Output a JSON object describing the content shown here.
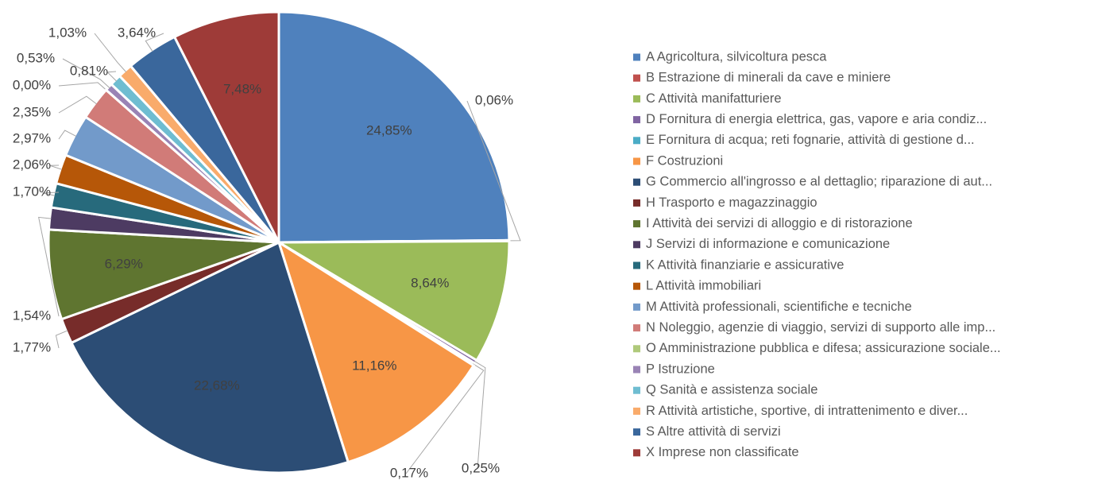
{
  "chart_data": {
    "type": "pie",
    "categories": [
      "A Agricoltura, silvicoltura pesca",
      "B Estrazione di minerali da cave e miniere",
      "C Attività manifatturiere",
      "D Fornitura di energia elettrica, gas, vapore e aria condiz...",
      "E Fornitura di acqua; reti fognarie, attività di gestione d...",
      "F Costruzioni",
      "G Commercio all'ingrosso e al dettaglio; riparazione di aut...",
      "H Trasporto e magazzinaggio",
      "I Attività dei servizi di alloggio e di ristorazione",
      "J Servizi di informazione e comunicazione",
      "K Attività finanziarie e assicurative",
      "L Attività immobiliari",
      "M Attività professionali, scientifiche e tecniche",
      "N Noleggio, agenzie di viaggio, servizi di supporto alle imp...",
      "O Amministrazione pubblica e difesa; assicurazione sociale...",
      "P Istruzione",
      "Q Sanità e assistenza sociale",
      "R Attività artistiche, sportive, di intrattenimento e diver...",
      "S Altre attività di servizi",
      "X Imprese non classificate"
    ],
    "values": [
      24.85,
      0.06,
      8.64,
      0.25,
      0.17,
      11.16,
      22.68,
      1.77,
      6.29,
      1.54,
      1.7,
      2.06,
      2.97,
      2.35,
      0.0,
      0.53,
      0.81,
      1.03,
      3.64,
      7.48
    ],
    "value_labels": [
      "24,85%",
      "0,06%",
      "8,64%",
      "0,25%",
      "0,17%",
      "11,16%",
      "22,68%",
      "1,77%",
      "6,29%",
      "1,54%",
      "1,70%",
      "2,06%",
      "2,97%",
      "2,35%",
      "0,00%",
      "0,53%",
      "0,81%",
      "1,03%",
      "3,64%",
      "7,48%"
    ],
    "colors": [
      "#4f81bd",
      "#c0504d",
      "#9bbb59",
      "#8064a2",
      "#4bacc6",
      "#f79646",
      "#2c4d75",
      "#772c2a",
      "#5f7530",
      "#4d3b62",
      "#276a7c",
      "#b65708",
      "#729aca",
      "#d17b78",
      "#afc97a",
      "#9983b5",
      "#6fbdd1",
      "#f9ab6b",
      "#3a679c",
      "#9e3b38"
    ],
    "legend": "right"
  }
}
